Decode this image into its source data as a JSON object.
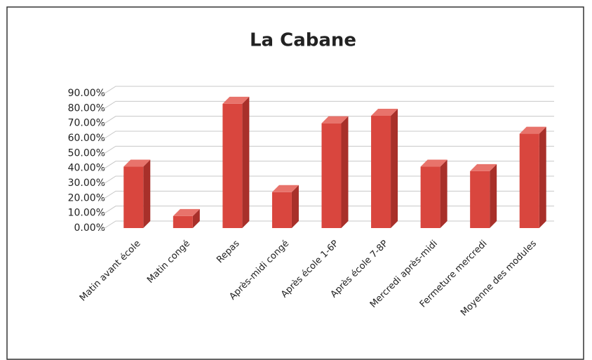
{
  "chart_data": {
    "type": "bar3d",
    "title": "La Cabane",
    "categories": [
      "Matin avant école",
      "Matin congé",
      "Repas",
      "Après-midi congé",
      "Après école 1-6P",
      "Après école 7-8P",
      "Mercredi après-midi",
      "Fermeture mercredi",
      "Moyenne des modules"
    ],
    "values": [
      41,
      8,
      83,
      24,
      70,
      75,
      41,
      38,
      63
    ],
    "color": "#d9463e",
    "ylim": [
      0,
      90
    ],
    "yticks": [
      {
        "value": 0,
        "label": "0.00%"
      },
      {
        "value": 10,
        "label": "10.00%"
      },
      {
        "value": 20,
        "label": "20.00%"
      },
      {
        "value": 30,
        "label": "30.00%"
      },
      {
        "value": 40,
        "label": "40.00%"
      },
      {
        "value": 50,
        "label": "50.00%"
      },
      {
        "value": 60,
        "label": "60.00%"
      },
      {
        "value": 70,
        "label": "70.00%"
      },
      {
        "value": 80,
        "label": "80.00%"
      },
      {
        "value": 90,
        "label": "90.00%"
      }
    ],
    "grid": true
  }
}
